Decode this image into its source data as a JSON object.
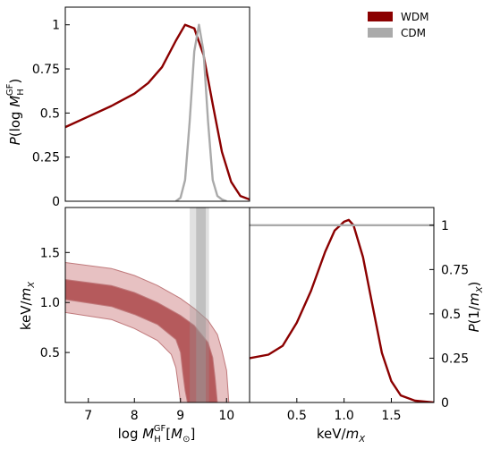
{
  "colors": {
    "wdm": "#8b0000",
    "cdm": "#aaaaaa",
    "band_inner": "#b55a5c",
    "band_outer": "#e7c1c2",
    "band_edge": "#c07a7c"
  },
  "legend": [
    {
      "label": "WDM",
      "color": "#8b0000"
    },
    {
      "label": "CDM",
      "color": "#aaaaaa"
    }
  ],
  "chart_data": [
    {
      "type": "line",
      "panel": "top",
      "ylabel": "P(log M_H^GF)",
      "xlim": [
        6.5,
        10.5
      ],
      "ylim": [
        0,
        1.1
      ],
      "yticks": [
        0,
        0.25,
        0.5,
        0.75,
        1
      ],
      "ytick_labels": [
        "0",
        "0.25",
        "0.5",
        "0.75",
        "1"
      ],
      "series": [
        {
          "name": "WDM",
          "x": [
            6.5,
            7.0,
            7.5,
            8.0,
            8.3,
            8.6,
            8.9,
            9.1,
            9.3,
            9.5,
            9.7,
            9.9,
            10.1,
            10.3,
            10.5
          ],
          "y": [
            0.42,
            0.48,
            0.54,
            0.61,
            0.67,
            0.76,
            0.91,
            1.0,
            0.98,
            0.83,
            0.55,
            0.28,
            0.11,
            0.03,
            0.01
          ]
        },
        {
          "name": "CDM",
          "x": [
            8.9,
            9.0,
            9.1,
            9.2,
            9.3,
            9.4,
            9.5,
            9.6,
            9.7,
            9.8,
            9.9,
            10.0
          ],
          "y": [
            0.0,
            0.02,
            0.12,
            0.45,
            0.85,
            1.0,
            0.85,
            0.45,
            0.12,
            0.03,
            0.01,
            0.0
          ]
        }
      ]
    },
    {
      "type": "area",
      "panel": "bottom-left",
      "xlabel": "log M_H^GF [M_⊙]",
      "ylabel": "keV/m_X",
      "xlim": [
        6.5,
        10.5
      ],
      "ylim": [
        0,
        1.95
      ],
      "xticks": [
        7,
        8,
        9,
        10
      ],
      "xtick_labels": [
        "7",
        "8",
        "9",
        "10"
      ],
      "yticks": [
        0.5,
        1.0,
        1.5
      ],
      "ytick_labels": [
        "0.5",
        "1.0",
        "1.5"
      ],
      "bands": [
        {
          "level": "outer",
          "upper_x": [
            6.5,
            7.5,
            8.0,
            8.5,
            9.0,
            9.3,
            9.6,
            9.8,
            9.9,
            10.0,
            10.05
          ],
          "upper_y": [
            1.4,
            1.34,
            1.27,
            1.17,
            1.04,
            0.94,
            0.82,
            0.68,
            0.52,
            0.32,
            0.0
          ],
          "lower_x": [
            6.5,
            7.5,
            8.0,
            8.5,
            8.8,
            8.9,
            8.95,
            9.0
          ],
          "lower_y": [
            0.9,
            0.83,
            0.74,
            0.62,
            0.48,
            0.35,
            0.18,
            0.0
          ]
        },
        {
          "level": "inner",
          "upper_x": [
            6.5,
            7.5,
            8.0,
            8.5,
            9.0,
            9.3,
            9.6,
            9.7,
            9.75,
            9.8
          ],
          "upper_y": [
            1.23,
            1.17,
            1.1,
            1.0,
            0.87,
            0.77,
            0.6,
            0.45,
            0.25,
            0.0
          ],
          "lower_x": [
            6.5,
            7.5,
            8.0,
            8.5,
            8.9,
            9.0,
            9.05,
            9.1,
            9.15
          ],
          "lower_y": [
            1.03,
            0.96,
            0.88,
            0.78,
            0.63,
            0.5,
            0.3,
            0.12,
            0.0
          ]
        }
      ],
      "cdm_vertical_bands": [
        {
          "level": "outer",
          "x": [
            9.2,
            9.62
          ]
        },
        {
          "level": "inner",
          "x": [
            9.34,
            9.55
          ]
        }
      ]
    },
    {
      "type": "line",
      "panel": "bottom-right",
      "xlabel": "keV/m_X",
      "ylabel": "P(1/m_X)",
      "xlim": [
        0,
        1.95
      ],
      "ylim": [
        0,
        1.1
      ],
      "xticks": [
        0.5,
        1.0,
        1.5
      ],
      "xtick_labels": [
        "0.5",
        "1.0",
        "1.5"
      ],
      "yticks": [
        0,
        0.25,
        0.5,
        0.75,
        1
      ],
      "ytick_labels": [
        "0",
        "0.25",
        "0.5",
        "0.75",
        "1"
      ],
      "series": [
        {
          "name": "WDM",
          "x": [
            0.0,
            0.2,
            0.35,
            0.5,
            0.65,
            0.8,
            0.9,
            1.0,
            1.05,
            1.1,
            1.2,
            1.3,
            1.4,
            1.5,
            1.6,
            1.75,
            1.95
          ],
          "y": [
            0.25,
            0.27,
            0.32,
            0.45,
            0.63,
            0.85,
            0.97,
            1.02,
            1.03,
            1.0,
            0.82,
            0.55,
            0.28,
            0.12,
            0.04,
            0.01,
            0.0
          ]
        },
        {
          "name": "CDM",
          "x": [
            0.0,
            1.95
          ],
          "y": [
            1.0,
            1.0
          ]
        }
      ]
    }
  ]
}
